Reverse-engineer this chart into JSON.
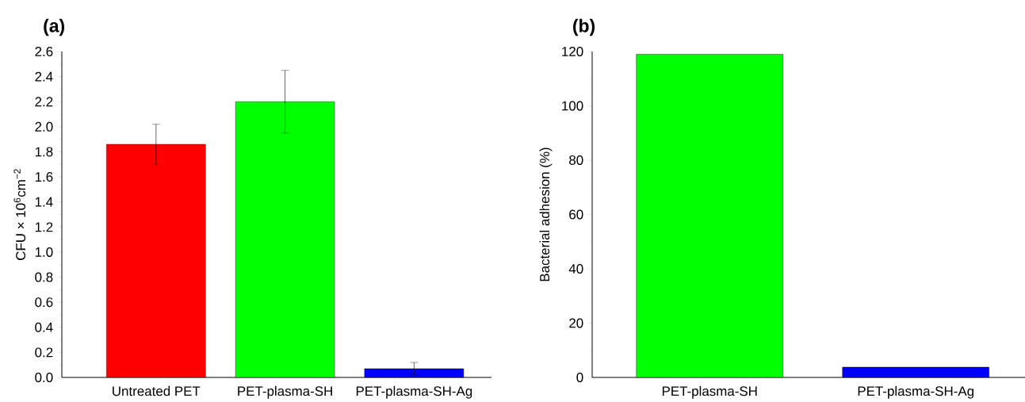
{
  "chart_data": [
    {
      "type": "bar",
      "title": "(a)",
      "ylabel": "CFU × 10$^{6}$cm$^{−2}$",
      "categories": [
        "Untreated PET",
        "PET-plasma-SH",
        "PET-plasma-SH-Ag"
      ],
      "values": [
        1.86,
        2.2,
        0.07
      ],
      "errors": [
        0.16,
        0.25,
        0.05
      ],
      "colors": [
        "#ff0000",
        "#00ff00",
        "#0000ff"
      ],
      "ylim": [
        0,
        2.6
      ],
      "yticks": [
        {
          "value": 0,
          "label": "0.0"
        },
        0.2,
        0.4,
        0.6,
        0.8,
        {
          "value": 1,
          "label": "1.0"
        },
        1.2,
        1.4,
        1.6,
        1.8,
        {
          "value": 2,
          "label": "2.0"
        },
        2.2,
        2.4,
        2.6
      ],
      "grid": false
    },
    {
      "type": "bar",
      "title": "(b)",
      "ylabel": "Bacterial adhesion (%)",
      "categories": [
        "PET-plasma-SH",
        "PET-plasma-SH-Ag"
      ],
      "values": [
        119,
        3.8
      ],
      "colors": [
        "#00ff00",
        "#0000ff"
      ],
      "ylim": [
        0,
        120
      ],
      "yticks": [
        0,
        20,
        40,
        60,
        80,
        100,
        120
      ],
      "grid": false
    }
  ]
}
